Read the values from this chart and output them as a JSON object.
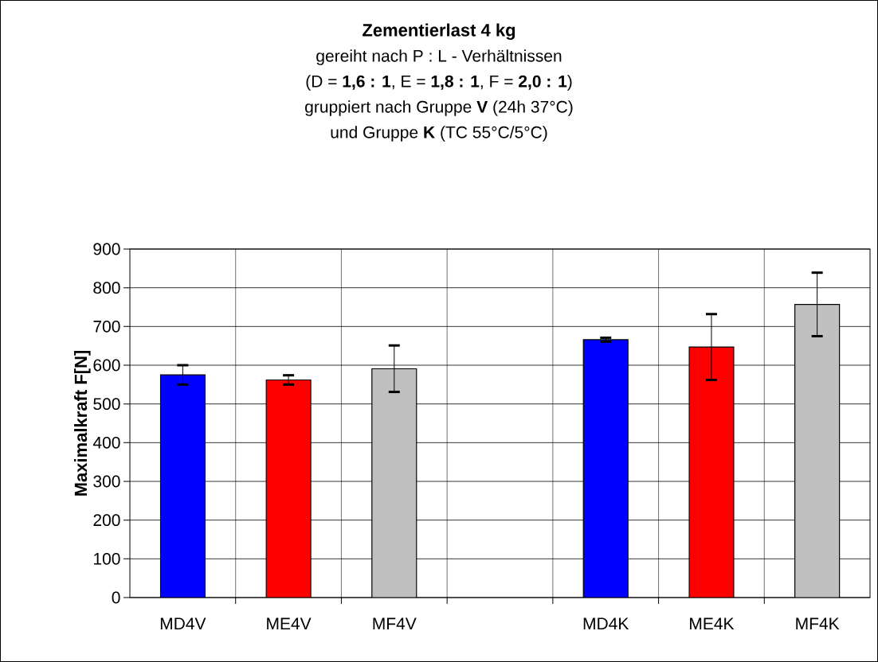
{
  "chart_data": {
    "type": "bar",
    "title": "Zementierlast 4 kg",
    "subtitle": "gereiht nach P : L - Verhältnissen",
    "annotations": [
      "(D = **1,6 : 1**, E = **1,8 : 1**, F = **2,0 : 1**)",
      "gruppiert nach Gruppe **V** (24h 37°C)",
      "und Gruppe **K** (TC 55°C/5°C)"
    ],
    "ylabel": "Maximalkraft F[N]",
    "categories": [
      "MD4V",
      "ME4V",
      "MF4V",
      null,
      "MD4K",
      "ME4K",
      "MF4K"
    ],
    "values": [
      575,
      562,
      591,
      null,
      666,
      647,
      757
    ],
    "errors": [
      25,
      12,
      60,
      null,
      5,
      85,
      82
    ],
    "colors": [
      "#0000ff",
      "#ff0000",
      "#c0c0c0",
      null,
      "#0000ff",
      "#ff0000",
      "#c0c0c0"
    ],
    "ylim": [
      0,
      900
    ],
    "yticks": [
      0,
      100,
      200,
      300,
      400,
      500,
      600,
      700,
      800,
      900
    ],
    "grid": true
  }
}
